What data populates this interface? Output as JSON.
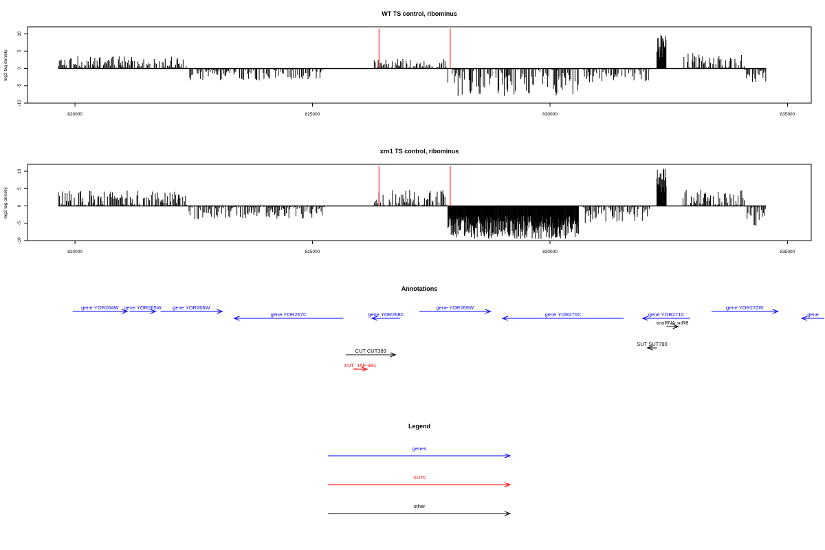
{
  "panels": [
    {
      "id": "wt",
      "title": "WT TS control, ribominus",
      "ylabel": "log2 tag density",
      "xlim": [
        819000,
        835500
      ],
      "ylim": [
        -10,
        12
      ],
      "yticks": [
        -10,
        -5,
        0,
        5,
        10
      ],
      "ytick_labels": [
        "-10",
        "-5",
        "0",
        "5",
        "10"
      ],
      "xticks": [
        820000,
        825000,
        830000,
        835000
      ],
      "xtick_labels": [
        "820000",
        "825000",
        "830000",
        "835000"
      ],
      "red_markers": [
        826400,
        827900
      ],
      "seed": 11
    },
    {
      "id": "xrn1",
      "title": "xrn1 TS control, riboминus",
      "ylabel": "log2 tag density",
      "xlim": [
        819000,
        835500
      ],
      "ylim": [
        -10,
        12
      ],
      "yticks": [
        -10,
        -5,
        0,
        5,
        10
      ],
      "ytick_labels": [
        "-10",
        "-5",
        "0",
        "5",
        "10"
      ],
      "xticks": [
        820000,
        825000,
        830000,
        835000
      ],
      "xtick_labels": [
        "820000",
        "825000",
        "830000",
        "835000"
      ],
      "red_markers": [
        826400,
        827900
      ],
      "seed": 29
    }
  ],
  "chart_data": [
    {
      "type": "bar",
      "title": "WT TS control, ribominus",
      "ylabel": "log2 tag density",
      "xlim": [
        819000,
        835500
      ],
      "ylim": [
        -10,
        12
      ],
      "segments": [
        {
          "from": 819650,
          "to": 822350,
          "strand": "+",
          "max": 3.5
        },
        {
          "from": 822400,
          "to": 825250,
          "strand": "-",
          "max": 3.5
        },
        {
          "from": 826300,
          "to": 827850,
          "strand": "+",
          "max": 3.0
        },
        {
          "from": 827850,
          "to": 830600,
          "strand": "-",
          "max": 8.0
        },
        {
          "from": 830700,
          "to": 832100,
          "strand": "-",
          "max": 4.0
        },
        {
          "from": 832250,
          "to": 832450,
          "strand": "+",
          "max": 10.5
        },
        {
          "from": 832800,
          "to": 834100,
          "strand": "+",
          "max": 4.5
        },
        {
          "from": 834100,
          "to": 834550,
          "strand": "-",
          "max": 4.0
        }
      ],
      "red_markers": [
        826400,
        827900
      ]
    },
    {
      "type": "bar",
      "title": "xrn1 TS control, ribominus",
      "ylabel": "log2 tag density",
      "xlim": [
        819000,
        835500
      ],
      "ylim": [
        -10,
        12
      ],
      "segments": [
        {
          "from": 819650,
          "to": 822350,
          "strand": "+",
          "max": 4.5
        },
        {
          "from": 822400,
          "to": 825250,
          "strand": "-",
          "max": 4.0
        },
        {
          "from": 826300,
          "to": 827850,
          "strand": "+",
          "max": 5.0
        },
        {
          "from": 827850,
          "to": 830600,
          "strand": "-",
          "max": 9.5
        },
        {
          "from": 830700,
          "to": 832100,
          "strand": "-",
          "max": 5.0
        },
        {
          "from": 832250,
          "to": 832450,
          "strand": "+",
          "max": 11.0
        },
        {
          "from": 832800,
          "to": 834100,
          "strand": "+",
          "max": 5.0
        },
        {
          "from": 834100,
          "to": 834550,
          "strand": "-",
          "max": 6.0
        }
      ],
      "red_markers": [
        826400,
        827900
      ]
    }
  ],
  "annotations": {
    "title": "Annotations",
    "features": [
      {
        "label": "gene YOR264W",
        "from": 819950,
        "to": 821100,
        "row": 0,
        "strand": "+",
        "color": "#0000ff"
      },
      {
        "label": "gene YOR265W",
        "from": 821150,
        "to": 821700,
        "row": 0,
        "strand": "+",
        "color": "#0000ff"
      },
      {
        "label": "gene YOR266W",
        "from": 821800,
        "to": 823100,
        "row": 0,
        "strand": "+",
        "color": "#0000ff"
      },
      {
        "label": "gene YOR267C",
        "from": 823350,
        "to": 825650,
        "row": 1,
        "strand": "-",
        "color": "#0000ff"
      },
      {
        "label": "gene YOR268C",
        "from": 826250,
        "to": 826850,
        "row": 1,
        "strand": "-",
        "color": "#0000ff"
      },
      {
        "label": "gene YOR269W",
        "from": 827250,
        "to": 828750,
        "row": 0,
        "strand": "+",
        "color": "#0000ff"
      },
      {
        "label": "gene YOR270C",
        "from": 829000,
        "to": 831550,
        "row": 1,
        "strand": "-",
        "color": "#0000ff"
      },
      {
        "label": "gene YOR271C",
        "from": 831950,
        "to": 832950,
        "row": 1,
        "strand": "-",
        "color": "#0000ff"
      },
      {
        "label": "snoRNA snR8",
        "from": 832450,
        "to": 832700,
        "row": 2,
        "strand": "+",
        "color": "#000000"
      },
      {
        "label": "gene YOR272W",
        "from": 833400,
        "to": 834800,
        "row": 0,
        "strand": "+",
        "color": "#0000ff"
      },
      {
        "label": "gene",
        "from": 835300,
        "to": 837000,
        "row": 1,
        "strand": "-",
        "color": "#0000ff"
      },
      {
        "label": "SUT SUT790",
        "from": 832050,
        "to": 832250,
        "row": 3,
        "strand": "-",
        "color": "#000000"
      },
      {
        "label": "CUT CUT389",
        "from": 825700,
        "to": 826750,
        "row": 4,
        "strand": "+",
        "color": "#000000"
      },
      {
        "label": "XUT_15F-381",
        "from": 825850,
        "to": 826150,
        "row": 5,
        "strand": "+",
        "color": "#ff0000"
      }
    ]
  },
  "legend": {
    "title": "Legend",
    "items": [
      {
        "label": "genes",
        "color": "#0000ff"
      },
      {
        "label": "XUTs",
        "color": "#ff0000"
      },
      {
        "label": "other",
        "color": "#000000"
      }
    ]
  }
}
